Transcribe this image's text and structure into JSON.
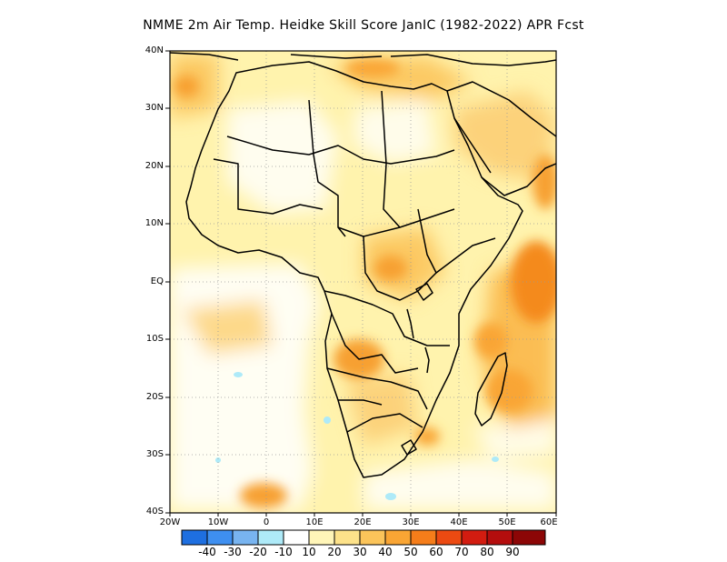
{
  "title": "NMME  2m Air Temp. Heidke Skill Score JanIC (1982-2022) APR Fcst",
  "map": {
    "lat_labels": [
      "40N",
      "30N",
      "20N",
      "10N",
      "EQ",
      "10S",
      "20S",
      "30S",
      "40S"
    ],
    "lon_labels": [
      "20W",
      "10W",
      "0",
      "10E",
      "20E",
      "30E",
      "40E",
      "50E",
      "60E"
    ],
    "extent": {
      "lon_min": -20,
      "lon_max": 60,
      "lat_min": -40,
      "lat_max": 40
    },
    "grid": "dotted, every 10 degrees"
  },
  "colorbar": {
    "labels": [
      "-40",
      "-30",
      "-20",
      "-10",
      "10",
      "20",
      "30",
      "40",
      "50",
      "60",
      "70",
      "80",
      "90"
    ],
    "colors": [
      "#1e6fe0",
      "#3e8ff0",
      "#78b4f0",
      "#aeeaf8",
      "#ffffff",
      "#fff5b8",
      "#fde28a",
      "#fbc45a",
      "#f9a534",
      "#f57d1a",
      "#ec4a12",
      "#d21c10",
      "#b40d0d",
      "#8c0606"
    ]
  }
}
